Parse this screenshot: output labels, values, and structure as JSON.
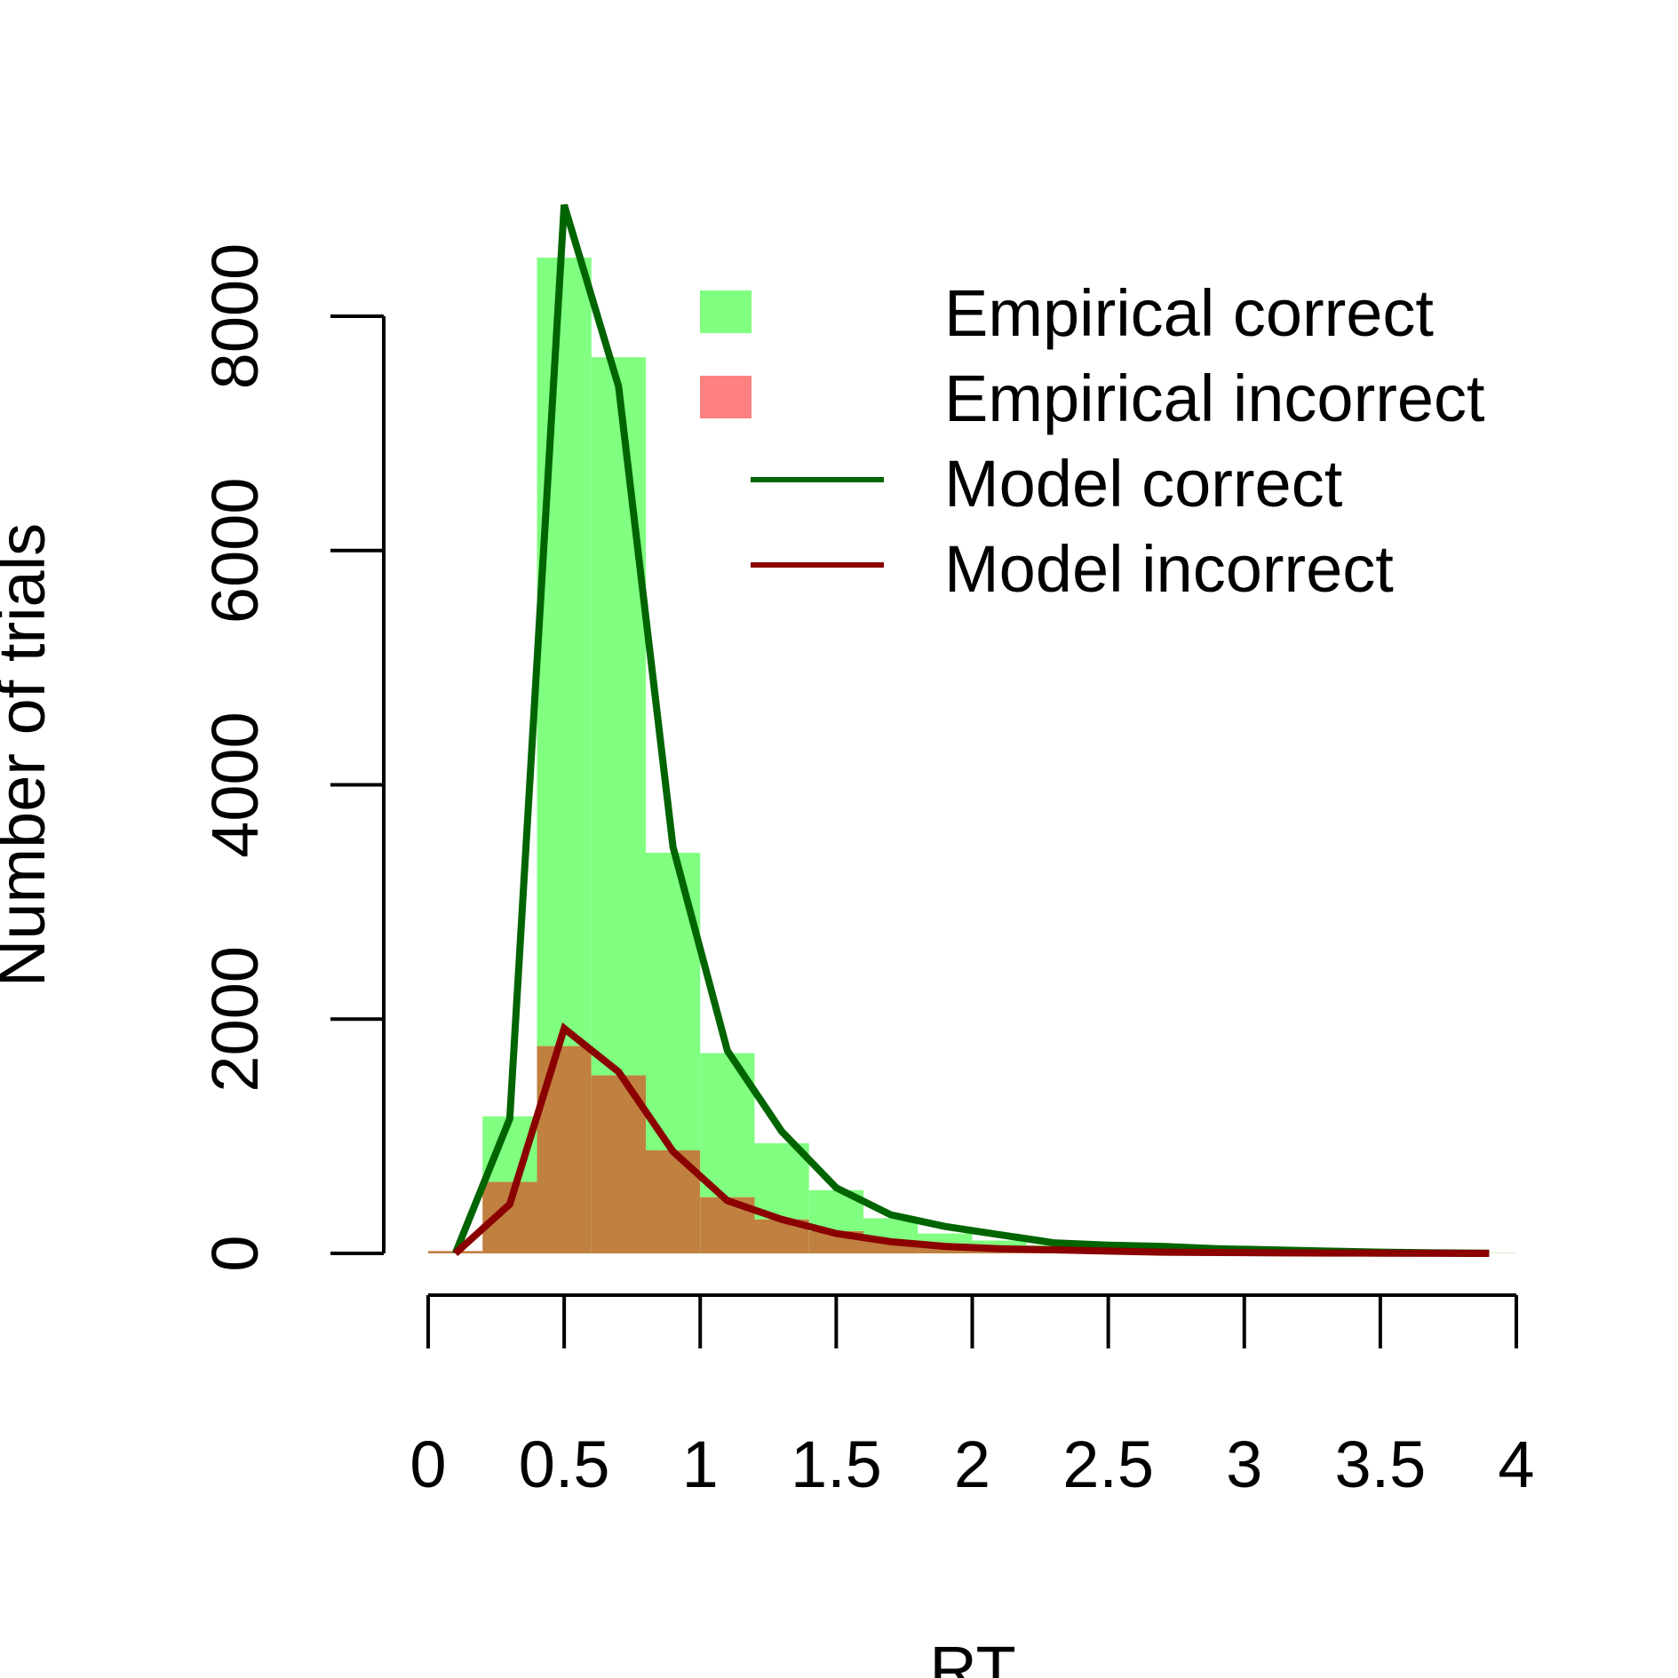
{
  "chart_data": {
    "type": "bar",
    "title": "",
    "xlabel": "RT",
    "ylabel": "Number of trials",
    "xlim": [
      0,
      4
    ],
    "ylim": [
      0,
      8000
    ],
    "x_ticks": [
      0,
      0.5,
      1,
      1.5,
      2,
      2.5,
      3,
      3.5,
      4
    ],
    "x_tick_labels": [
      "0",
      "0.5",
      "1",
      "1.5",
      "2",
      "2.5",
      "3",
      "3.5",
      "4"
    ],
    "y_ticks": [
      0,
      2000,
      4000,
      6000,
      8000
    ],
    "y_tick_labels": [
      "0",
      "2000",
      "4000",
      "6000",
      "8000"
    ],
    "grid": false,
    "legend_position": "top-right",
    "bin_edges": [
      0,
      0.2,
      0.4,
      0.6,
      0.8,
      1.0,
      1.2,
      1.4,
      1.6,
      1.8,
      2.0,
      2.2,
      2.4,
      2.6,
      2.8,
      3.0,
      3.2,
      3.4,
      3.6,
      3.8,
      4.0
    ],
    "histograms": [
      {
        "name": "Empirical correct",
        "color": "#80ff80",
        "values": [
          20,
          1170,
          8500,
          7650,
          3420,
          1710,
          940,
          540,
          300,
          170,
          110,
          70,
          50,
          30,
          20,
          15,
          10,
          8,
          5,
          3
        ]
      },
      {
        "name": "Empirical incorrect",
        "color": "#ff8080",
        "overlap_color": "#c08040",
        "values": [
          20,
          610,
          1770,
          1520,
          880,
          480,
          290,
          190,
          110,
          70,
          40,
          30,
          20,
          15,
          10,
          8,
          5,
          3,
          2,
          1
        ]
      }
    ],
    "series": [
      {
        "name": "Model correct",
        "color": "#006400",
        "x": [
          0.1,
          0.3,
          0.5,
          0.7,
          0.9,
          1.1,
          1.3,
          1.5,
          1.7,
          1.9,
          2.1,
          2.3,
          2.5,
          2.7,
          2.9,
          3.1,
          3.3,
          3.5,
          3.7,
          3.9
        ],
        "values": [
          0,
          1150,
          8950,
          7400,
          3470,
          1730,
          1040,
          560,
          330,
          230,
          160,
          90,
          70,
          60,
          40,
          30,
          20,
          10,
          5,
          2
        ]
      },
      {
        "name": "Model incorrect",
        "color": "#8b0000",
        "x": [
          0.1,
          0.3,
          0.5,
          0.7,
          0.9,
          1.1,
          1.3,
          1.5,
          1.7,
          1.9,
          2.1,
          2.3,
          2.5,
          2.7,
          2.9,
          3.1,
          3.3,
          3.5,
          3.7,
          3.9
        ],
        "values": [
          0,
          420,
          1920,
          1550,
          870,
          450,
          290,
          170,
          100,
          60,
          40,
          30,
          20,
          10,
          8,
          5,
          3,
          2,
          1,
          0
        ]
      }
    ],
    "legend": [
      {
        "label": "Empirical correct",
        "kind": "box",
        "color": "#80ff80"
      },
      {
        "label": "Empirical incorrect",
        "kind": "box",
        "color": "#ff8080"
      },
      {
        "label": "Model correct",
        "kind": "line",
        "color": "#006400"
      },
      {
        "label": "Model incorrect",
        "kind": "line",
        "color": "#8b0000"
      }
    ]
  }
}
